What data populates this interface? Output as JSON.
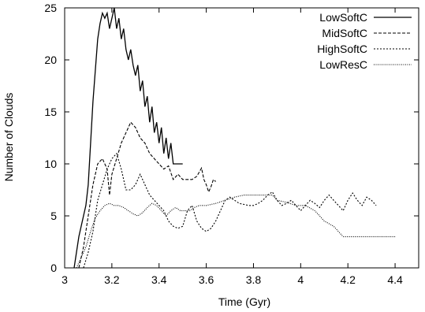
{
  "chart_data": {
    "type": "line",
    "xlabel": "Time (Gyr)",
    "ylabel": "Number of Clouds",
    "xlim": [
      3.0,
      4.5
    ],
    "ylim": [
      0,
      25
    ],
    "x_ticks": [
      "3",
      "3.2",
      "3.4",
      "3.6",
      "3.8",
      "4",
      "4.2",
      "4.4"
    ],
    "y_ticks": [
      "0",
      "5",
      "10",
      "15",
      "20",
      "25"
    ],
    "grid": false,
    "legend_position": "top-right",
    "series": [
      {
        "name": "LowSoftC",
        "dash": "solid",
        "points": [
          [
            3.04,
            0
          ],
          [
            3.06,
            3
          ],
          [
            3.08,
            5
          ],
          [
            3.09,
            6
          ],
          [
            3.1,
            8
          ],
          [
            3.11,
            12
          ],
          [
            3.12,
            16
          ],
          [
            3.13,
            19
          ],
          [
            3.14,
            22
          ],
          [
            3.15,
            23.5
          ],
          [
            3.16,
            24.5
          ],
          [
            3.17,
            24
          ],
          [
            3.18,
            24.5
          ],
          [
            3.19,
            23
          ],
          [
            3.2,
            24
          ],
          [
            3.21,
            25
          ],
          [
            3.22,
            23
          ],
          [
            3.23,
            24
          ],
          [
            3.24,
            22
          ],
          [
            3.25,
            23
          ],
          [
            3.26,
            21
          ],
          [
            3.27,
            20
          ],
          [
            3.28,
            21
          ],
          [
            3.29,
            19.5
          ],
          [
            3.3,
            18.5
          ],
          [
            3.31,
            19.5
          ],
          [
            3.32,
            17
          ],
          [
            3.33,
            18
          ],
          [
            3.34,
            15.5
          ],
          [
            3.35,
            16.5
          ],
          [
            3.36,
            14
          ],
          [
            3.37,
            15.5
          ],
          [
            3.38,
            13
          ],
          [
            3.39,
            14
          ],
          [
            3.4,
            12
          ],
          [
            3.41,
            13.5
          ],
          [
            3.42,
            11
          ],
          [
            3.43,
            12.5
          ],
          [
            3.44,
            10.5
          ],
          [
            3.45,
            12
          ],
          [
            3.46,
            10
          ],
          [
            3.48,
            10
          ],
          [
            3.5,
            10
          ]
        ]
      },
      {
        "name": "MidSoftC",
        "dash": "dashed",
        "points": [
          [
            3.06,
            0
          ],
          [
            3.08,
            2
          ],
          [
            3.1,
            5
          ],
          [
            3.12,
            8
          ],
          [
            3.14,
            10
          ],
          [
            3.16,
            10.5
          ],
          [
            3.18,
            9.5
          ],
          [
            3.19,
            7
          ],
          [
            3.2,
            9
          ],
          [
            3.22,
            10.5
          ],
          [
            3.24,
            12
          ],
          [
            3.26,
            13
          ],
          [
            3.28,
            14
          ],
          [
            3.3,
            13.5
          ],
          [
            3.32,
            12.5
          ],
          [
            3.34,
            12
          ],
          [
            3.36,
            11
          ],
          [
            3.38,
            10.5
          ],
          [
            3.4,
            10
          ],
          [
            3.42,
            9.5
          ],
          [
            3.44,
            9.8
          ],
          [
            3.46,
            8.5
          ],
          [
            3.48,
            9
          ],
          [
            3.5,
            8.5
          ],
          [
            3.52,
            8.5
          ],
          [
            3.54,
            8.5
          ],
          [
            3.56,
            8.8
          ],
          [
            3.58,
            9.6
          ],
          [
            3.59,
            8.5
          ],
          [
            3.6,
            8
          ],
          [
            3.61,
            7.3
          ],
          [
            3.62,
            7.8
          ],
          [
            3.63,
            8.5
          ],
          [
            3.64,
            8.3
          ]
        ]
      },
      {
        "name": "HighSoftC",
        "dash": "dotted",
        "points": [
          [
            3.08,
            0
          ],
          [
            3.1,
            1.5
          ],
          [
            3.12,
            3.5
          ],
          [
            3.14,
            6.5
          ],
          [
            3.16,
            8
          ],
          [
            3.18,
            9.5
          ],
          [
            3.2,
            10.5
          ],
          [
            3.22,
            11
          ],
          [
            3.24,
            9.5
          ],
          [
            3.26,
            7.5
          ],
          [
            3.28,
            7.5
          ],
          [
            3.3,
            8
          ],
          [
            3.32,
            9
          ],
          [
            3.34,
            8
          ],
          [
            3.36,
            7
          ],
          [
            3.38,
            6.5
          ],
          [
            3.4,
            6
          ],
          [
            3.42,
            5.5
          ],
          [
            3.44,
            4.5
          ],
          [
            3.46,
            4
          ],
          [
            3.48,
            3.8
          ],
          [
            3.5,
            4
          ],
          [
            3.52,
            5.5
          ],
          [
            3.54,
            6
          ],
          [
            3.56,
            4.5
          ],
          [
            3.58,
            3.8
          ],
          [
            3.6,
            3.5
          ],
          [
            3.62,
            3.8
          ],
          [
            3.64,
            4.5
          ],
          [
            3.66,
            5.5
          ],
          [
            3.68,
            6.5
          ],
          [
            3.7,
            6.8
          ],
          [
            3.72,
            6.5
          ],
          [
            3.74,
            6.2
          ],
          [
            3.76,
            6.1
          ],
          [
            3.78,
            6.0
          ],
          [
            3.8,
            6.0
          ],
          [
            3.82,
            6.2
          ],
          [
            3.84,
            6.5
          ],
          [
            3.86,
            7.0
          ],
          [
            3.88,
            7.3
          ],
          [
            3.9,
            6.5
          ],
          [
            3.92,
            6.0
          ],
          [
            3.94,
            6.2
          ],
          [
            3.96,
            6.5
          ],
          [
            3.98,
            6.0
          ],
          [
            4.0,
            5.5
          ],
          [
            4.02,
            6.0
          ],
          [
            4.04,
            6.5
          ],
          [
            4.06,
            6.2
          ],
          [
            4.08,
            5.8
          ],
          [
            4.1,
            6.5
          ],
          [
            4.12,
            7.0
          ],
          [
            4.14,
            6.5
          ],
          [
            4.16,
            6.0
          ],
          [
            4.18,
            5.5
          ],
          [
            4.2,
            6.5
          ],
          [
            4.22,
            7.2
          ],
          [
            4.24,
            6.5
          ],
          [
            4.26,
            6.0
          ],
          [
            4.28,
            6.8
          ],
          [
            4.3,
            6.5
          ],
          [
            4.32,
            6.0
          ]
        ]
      },
      {
        "name": "LowResC",
        "dash": "fine-dotted",
        "points": [
          [
            3.05,
            0
          ],
          [
            3.07,
            1
          ],
          [
            3.09,
            2
          ],
          [
            3.11,
            3.5
          ],
          [
            3.13,
            4.8
          ],
          [
            3.15,
            5.5
          ],
          [
            3.17,
            6
          ],
          [
            3.19,
            6.2
          ],
          [
            3.21,
            6
          ],
          [
            3.23,
            6
          ],
          [
            3.25,
            5.8
          ],
          [
            3.27,
            5.5
          ],
          [
            3.29,
            5.2
          ],
          [
            3.31,
            5
          ],
          [
            3.33,
            5.3
          ],
          [
            3.35,
            5.8
          ],
          [
            3.37,
            6.2
          ],
          [
            3.39,
            6
          ],
          [
            3.41,
            5.5
          ],
          [
            3.43,
            5
          ],
          [
            3.45,
            5.5
          ],
          [
            3.47,
            5.8
          ],
          [
            3.49,
            5.5
          ],
          [
            3.51,
            5.5
          ],
          [
            3.53,
            5.5
          ],
          [
            3.55,
            5.8
          ],
          [
            3.57,
            6
          ],
          [
            3.6,
            6
          ],
          [
            3.64,
            6.2
          ],
          [
            3.68,
            6.5
          ],
          [
            3.72,
            6.8
          ],
          [
            3.76,
            7
          ],
          [
            3.8,
            7
          ],
          [
            3.84,
            7
          ],
          [
            3.88,
            7
          ],
          [
            3.9,
            6.5
          ],
          [
            3.94,
            6.3
          ],
          [
            3.98,
            6.0
          ],
          [
            4.02,
            6
          ],
          [
            4.06,
            5.5
          ],
          [
            4.1,
            4.5
          ],
          [
            4.14,
            4
          ],
          [
            4.16,
            3.5
          ],
          [
            4.18,
            3
          ],
          [
            4.22,
            3
          ],
          [
            4.28,
            3
          ],
          [
            4.34,
            3
          ],
          [
            4.4,
            3
          ]
        ]
      }
    ]
  }
}
